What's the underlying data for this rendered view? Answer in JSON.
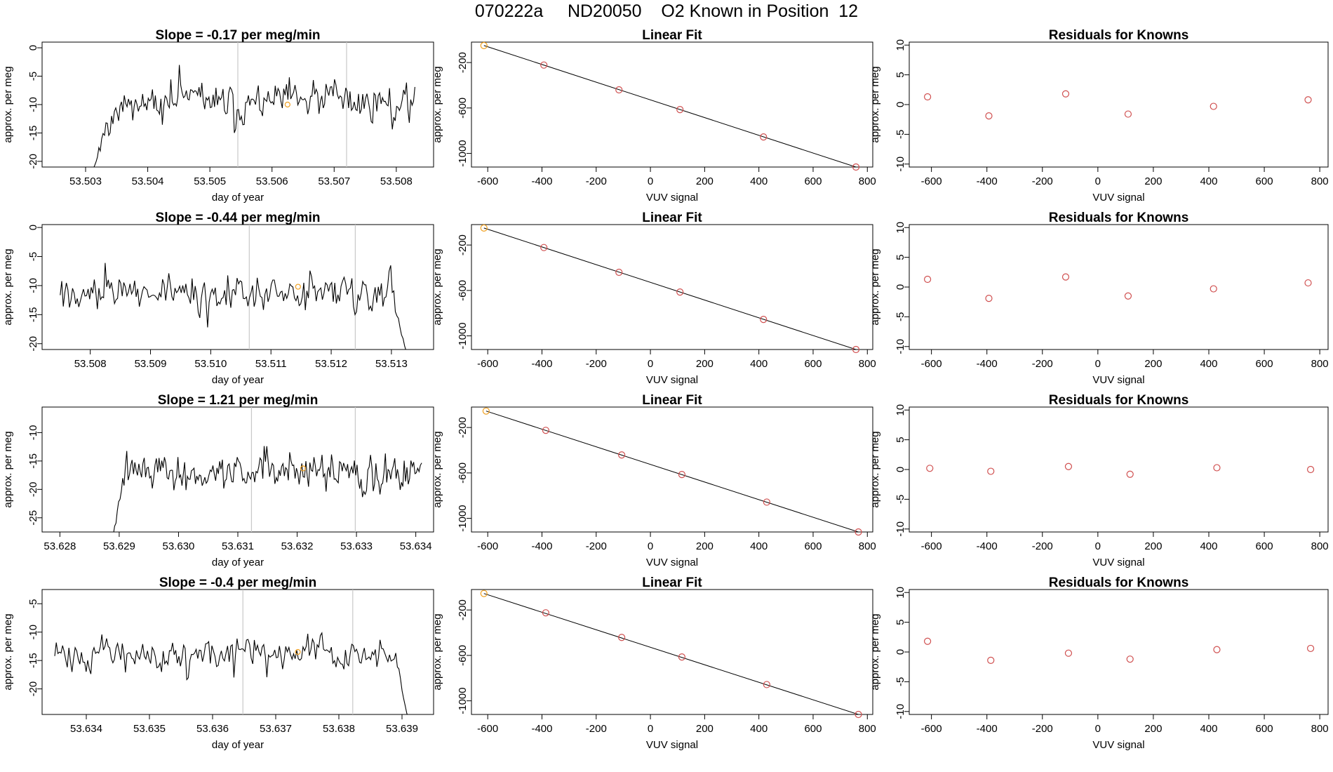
{
  "header": {
    "title": "070222a     ND20050    O2 Known in Position  12"
  },
  "chart_data": [
    {
      "panel": "time-series",
      "row": 1,
      "type": "line",
      "title": "Slope =  -0.17  per meg/min",
      "xlabel": "day of year",
      "ylabel": "approx. per meg",
      "xlim": [
        53.5023,
        53.5086
      ],
      "ylim": [
        -21,
        1
      ],
      "xticks": [
        "53.503",
        "53.504",
        "53.505",
        "53.506",
        "53.507",
        "53.508"
      ],
      "yticks": [
        "-20",
        "-15",
        "-10",
        "-5",
        "0"
      ],
      "x_start": 53.5031,
      "x_end": 53.5083,
      "start_value": -22,
      "ramp_end_x": 53.5035,
      "mean": -9.5,
      "noise": 2.4,
      "seed": 11,
      "vlines": [
        53.50545,
        53.5072
      ],
      "marker": {
        "x": 53.50625,
        "y": -10.0,
        "color": "#f0a020"
      },
      "line_color": "#000000",
      "vline_color": "#c8c8c8"
    },
    {
      "panel": "linear-fit",
      "row": 1,
      "type": "scatter",
      "title": "Linear Fit",
      "xlabel": "VUV signal",
      "ylabel": "approx. per meg",
      "xlim": [
        -660,
        820
      ],
      "ylim": [
        -1120,
        -20
      ],
      "xticks": [
        "-600",
        "-400",
        "-200",
        "0",
        "200",
        "400",
        "600",
        "800"
      ],
      "yticks": [
        "-1000",
        "-600",
        "-200"
      ],
      "points": [
        [
          -614,
          -50
        ],
        [
          -393,
          -222
        ],
        [
          -116,
          -440
        ],
        [
          109,
          -614
        ],
        [
          417,
          -855
        ],
        [
          758,
          -1120
        ]
      ],
      "fit": [
        [
          -614,
          -50
        ],
        [
          758,
          -1120
        ]
      ],
      "highlight_first": true
    },
    {
      "panel": "residuals",
      "row": 1,
      "type": "scatter",
      "title": "Residuals for Knowns",
      "xlabel": "VUV signal",
      "ylabel": "approx. per meg",
      "xlim": [
        -680,
        830
      ],
      "ylim": [
        -10.5,
        10.5
      ],
      "xticks": [
        "-600",
        "-400",
        "-200",
        "0",
        "200",
        "400",
        "600",
        "800"
      ],
      "yticks": [
        "-10",
        "-5",
        "0",
        "5",
        "10"
      ],
      "points": [
        [
          -614,
          1.3
        ],
        [
          -393,
          -1.9
        ],
        [
          -116,
          1.8
        ],
        [
          109,
          -1.6
        ],
        [
          417,
          -0.3
        ],
        [
          758,
          0.8
        ]
      ]
    },
    {
      "panel": "time-series",
      "row": 2,
      "type": "line",
      "title": "Slope =  -0.44  per meg/min",
      "xlabel": "day of year",
      "ylabel": "approx. per meg",
      "xlim": [
        53.5072,
        53.5137
      ],
      "ylim": [
        -21,
        0.5
      ],
      "xticks": [
        "53.508",
        "53.509",
        "53.510",
        "53.511",
        "53.512",
        "53.513"
      ],
      "yticks": [
        "-20",
        "-15",
        "-10",
        "-5",
        "0"
      ],
      "x_start": 53.5075,
      "x_end": 53.5134,
      "start_value": -11.5,
      "ramp_end_x": 53.5075,
      "mean": -11.0,
      "noise": 2.3,
      "seed": 27,
      "tail_x": 53.513,
      "tail_value": -21.5,
      "vlines": [
        53.51064,
        53.5124
      ],
      "marker": {
        "x": 53.51145,
        "y": -10.2,
        "color": "#f0a020"
      },
      "line_color": "#000000",
      "vline_color": "#c8c8c8"
    },
    {
      "panel": "linear-fit",
      "row": 2,
      "type": "scatter",
      "title": "Linear Fit",
      "xlabel": "VUV signal",
      "ylabel": "approx. per meg",
      "xlim": [
        -660,
        820
      ],
      "ylim": [
        -1120,
        -20
      ],
      "xticks": [
        "-600",
        "-400",
        "-200",
        "0",
        "200",
        "400",
        "600",
        "800"
      ],
      "yticks": [
        "-1000",
        "-600",
        "-200"
      ],
      "points": [
        [
          -614,
          -50
        ],
        [
          -393,
          -222
        ],
        [
          -116,
          -440
        ],
        [
          109,
          -614
        ],
        [
          417,
          -855
        ],
        [
          758,
          -1120
        ]
      ],
      "fit": [
        [
          -614,
          -50
        ],
        [
          758,
          -1120
        ]
      ],
      "highlight_first": true
    },
    {
      "panel": "residuals",
      "row": 2,
      "type": "scatter",
      "title": "Residuals for Knowns",
      "xlabel": "VUV signal",
      "ylabel": "approx. per meg",
      "xlim": [
        -680,
        830
      ],
      "ylim": [
        -10.5,
        10.5
      ],
      "xticks": [
        "-600",
        "-400",
        "-200",
        "0",
        "200",
        "400",
        "600",
        "800"
      ],
      "yticks": [
        "-10",
        "-5",
        "0",
        "5",
        "10"
      ],
      "points": [
        [
          -614,
          1.3
        ],
        [
          -393,
          -1.9
        ],
        [
          -116,
          1.7
        ],
        [
          109,
          -1.5
        ],
        [
          417,
          -0.3
        ],
        [
          758,
          0.7
        ]
      ]
    },
    {
      "panel": "time-series",
      "row": 3,
      "type": "line",
      "title": "Slope =  1.21  per meg/min",
      "xlabel": "day of year",
      "ylabel": "approx. per meg",
      "xlim": [
        53.6277,
        53.6343
      ],
      "ylim": [
        -27.5,
        -5.5
      ],
      "xticks": [
        "53.628",
        "53.629",
        "53.630",
        "53.631",
        "53.632",
        "53.633",
        "53.634"
      ],
      "yticks": [
        "-25",
        "-20",
        "-15",
        "-10"
      ],
      "x_start": 53.6289,
      "x_end": 53.6341,
      "start_value": -28,
      "ramp_end_x": 53.6291,
      "mean": -17.0,
      "noise": 2.3,
      "seed": 43,
      "trend": 0.0,
      "vlines": [
        53.63123,
        53.63298
      ],
      "marker": {
        "x": 53.6321,
        "y": -16.3,
        "color": "#f0a020"
      },
      "line_color": "#000000",
      "vline_color": "#c8c8c8"
    },
    {
      "panel": "linear-fit",
      "row": 3,
      "type": "scatter",
      "title": "Linear Fit",
      "xlabel": "VUV signal",
      "ylabel": "approx. per meg",
      "xlim": [
        -660,
        820
      ],
      "ylim": [
        -1120,
        -20
      ],
      "xticks": [
        "-600",
        "-400",
        "-200",
        "0",
        "200",
        "400",
        "600",
        "800"
      ],
      "yticks": [
        "-1000",
        "-600",
        "-200"
      ],
      "points": [
        [
          -606,
          -55
        ],
        [
          -386,
          -225
        ],
        [
          -106,
          -442
        ],
        [
          116,
          -614
        ],
        [
          429,
          -857
        ],
        [
          767,
          -1120
        ]
      ],
      "fit": [
        [
          -606,
          -55
        ],
        [
          767,
          -1120
        ]
      ],
      "highlight_first": true
    },
    {
      "panel": "residuals",
      "row": 3,
      "type": "scatter",
      "title": "Residuals for Knowns",
      "xlabel": "VUV signal",
      "ylabel": "approx. per meg",
      "xlim": [
        -680,
        830
      ],
      "ylim": [
        -10.5,
        10.5
      ],
      "xticks": [
        "-600",
        "-400",
        "-200",
        "0",
        "200",
        "400",
        "600",
        "800"
      ],
      "yticks": [
        "-10",
        "-5",
        "0",
        "5",
        "10"
      ],
      "points": [
        [
          -606,
          0.2
        ],
        [
          -386,
          -0.3
        ],
        [
          -106,
          0.5
        ],
        [
          116,
          -0.8
        ],
        [
          429,
          0.3
        ],
        [
          767,
          0.0
        ]
      ]
    },
    {
      "panel": "time-series",
      "row": 4,
      "type": "line",
      "title": "Slope =  -0.4  per meg/min",
      "xlabel": "day of year",
      "ylabel": "approx. per meg",
      "xlim": [
        53.6333,
        53.6395
      ],
      "ylim": [
        -24.5,
        -2.5
      ],
      "xticks": [
        "53.634",
        "53.635",
        "53.636",
        "53.637",
        "53.638",
        "53.639"
      ],
      "yticks": [
        "-20",
        "-15",
        "-10",
        "-5"
      ],
      "x_start": 53.6335,
      "x_end": 53.6392,
      "start_value": -17,
      "ramp_end_x": 53.6335,
      "mean": -14.0,
      "noise": 2.0,
      "seed": 71,
      "tail_x": 53.6389,
      "tail_value": -25,
      "vlines": [
        53.63648,
        53.63822
      ],
      "marker": {
        "x": 53.63735,
        "y": -13.5,
        "color": "#f0a020"
      },
      "line_color": "#000000",
      "vline_color": "#c8c8c8"
    },
    {
      "panel": "linear-fit",
      "row": 4,
      "type": "scatter",
      "title": "Linear Fit",
      "xlabel": "VUV signal",
      "ylabel": "approx. per meg",
      "xlim": [
        -660,
        820
      ],
      "ylim": [
        -1120,
        -20
      ],
      "xticks": [
        "-600",
        "-400",
        "-200",
        "0",
        "200",
        "400",
        "600",
        "800"
      ],
      "yticks": [
        "-1000",
        "-600",
        "-200"
      ],
      "points": [
        [
          -614,
          -55
        ],
        [
          -386,
          -225
        ],
        [
          -106,
          -442
        ],
        [
          116,
          -614
        ],
        [
          429,
          -857
        ],
        [
          767,
          -1120
        ]
      ],
      "fit": [
        [
          -614,
          -55
        ],
        [
          767,
          -1120
        ]
      ],
      "highlight_first": true
    },
    {
      "panel": "residuals",
      "row": 4,
      "type": "scatter",
      "title": "Residuals for Knowns",
      "xlabel": "VUV signal",
      "ylabel": "approx. per meg",
      "xlim": [
        -680,
        830
      ],
      "ylim": [
        -10.5,
        10.5
      ],
      "xticks": [
        "-600",
        "-400",
        "-200",
        "0",
        "200",
        "400",
        "600",
        "800"
      ],
      "yticks": [
        "-10",
        "-5",
        "0",
        "5",
        "10"
      ],
      "points": [
        [
          -614,
          1.8
        ],
        [
          -386,
          -1.4
        ],
        [
          -106,
          -0.2
        ],
        [
          116,
          -1.2
        ],
        [
          429,
          0.4
        ],
        [
          767,
          0.6
        ]
      ]
    }
  ],
  "colors": {
    "axis": "#000000",
    "point": "#d05050",
    "highlight_point": "#f0a020",
    "fit_line": "#000000"
  }
}
